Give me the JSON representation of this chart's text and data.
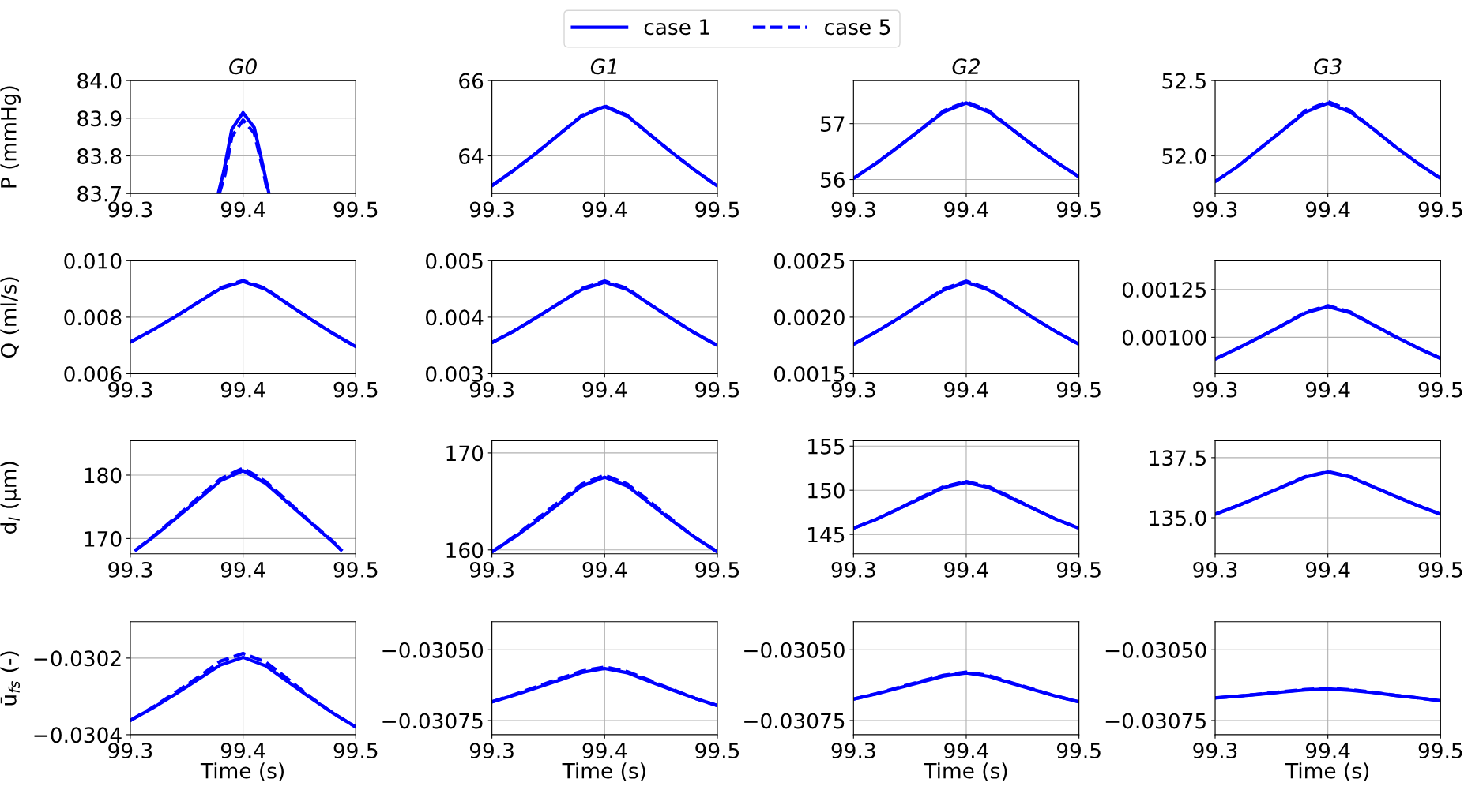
{
  "chart_data": [
    {
      "type": "line",
      "title": "G0",
      "ylabel": "P (mmHg)",
      "legend": "top",
      "grid": true,
      "xlim": [
        99.3,
        99.5
      ],
      "xticks": [
        99.3,
        99.4,
        99.5
      ],
      "ylim": [
        83.7,
        84.0
      ],
      "yticks": [
        83.7,
        83.8,
        83.9,
        {
          "value": 84.0,
          "label": "84.0"
        }
      ],
      "series": [
        {
          "name": "case 1",
          "color": "#0000ff",
          "line_style": "solid",
          "x": [
            99.378,
            99.383,
            99.39,
            99.4,
            99.41,
            99.418,
            99.423
          ],
          "values": [
            83.7,
            83.76,
            83.87,
            83.915,
            83.875,
            83.77,
            83.7
          ]
        },
        {
          "name": "case 5",
          "color": "#0000ff",
          "line_style": "dashed",
          "x": [
            99.379,
            99.384,
            99.39,
            99.4,
            99.41,
            99.418,
            99.422
          ],
          "values": [
            83.7,
            83.75,
            83.85,
            83.895,
            83.86,
            83.76,
            83.7
          ]
        }
      ]
    },
    {
      "type": "line",
      "title": "G1",
      "grid": true,
      "xlim": [
        99.3,
        99.5
      ],
      "xticks": [
        99.3,
        99.4,
        99.5
      ],
      "ylim": [
        63.0,
        66.0
      ],
      "yticks": [
        64,
        66
      ],
      "x": [
        99.3,
        99.32,
        99.34,
        99.36,
        99.38,
        99.4,
        99.42,
        99.44,
        99.46,
        99.48,
        99.5
      ],
      "series": [
        {
          "name": "case 1",
          "color": "#0000ff",
          "line_style": "solid",
          "values": [
            63.21,
            63.63,
            64.09,
            64.58,
            65.06,
            65.31,
            65.06,
            64.57,
            64.08,
            63.62,
            63.2
          ]
        },
        {
          "name": "case 5",
          "color": "#0000ff",
          "line_style": "dashed",
          "values": [
            63.21,
            63.63,
            64.09,
            64.58,
            65.08,
            65.33,
            65.08,
            64.57,
            64.08,
            63.62,
            63.2
          ]
        }
      ]
    },
    {
      "type": "line",
      "title": "G2",
      "grid": true,
      "xlim": [
        99.3,
        99.5
      ],
      "xticks": [
        99.3,
        99.4,
        99.5
      ],
      "ylim": [
        55.75,
        57.77
      ],
      "yticks": [
        56,
        57
      ],
      "x": [
        99.3,
        99.32,
        99.34,
        99.36,
        99.38,
        99.4,
        99.42,
        99.44,
        99.46,
        99.48,
        99.5
      ],
      "series": [
        {
          "name": "case 1",
          "color": "#0000ff",
          "line_style": "solid",
          "values": [
            56.02,
            56.29,
            56.59,
            56.9,
            57.21,
            57.37,
            57.21,
            56.91,
            56.6,
            56.31,
            56.05
          ]
        },
        {
          "name": "case 5",
          "color": "#0000ff",
          "line_style": "dashed",
          "values": [
            56.02,
            56.29,
            56.59,
            56.9,
            57.23,
            57.39,
            57.23,
            56.91,
            56.6,
            56.31,
            56.05
          ]
        }
      ]
    },
    {
      "type": "line",
      "title": "G3",
      "grid": true,
      "xlim": [
        99.3,
        99.5
      ],
      "xticks": [
        99.3,
        99.4,
        99.5
      ],
      "ylim": [
        51.75,
        52.5
      ],
      "yticks": [
        {
          "value": 52.0,
          "label": "52.0"
        },
        52.5
      ],
      "x": [
        99.3,
        99.32,
        99.34,
        99.36,
        99.38,
        99.4,
        99.42,
        99.44,
        99.46,
        99.48,
        99.5
      ],
      "series": [
        {
          "name": "case 1",
          "color": "#0000ff",
          "line_style": "solid",
          "values": [
            51.83,
            51.93,
            52.05,
            52.17,
            52.29,
            52.35,
            52.29,
            52.18,
            52.06,
            51.95,
            51.85
          ]
        },
        {
          "name": "case 5",
          "color": "#0000ff",
          "line_style": "dashed",
          "values": [
            51.83,
            51.93,
            52.05,
            52.17,
            52.3,
            52.36,
            52.3,
            52.18,
            52.06,
            51.95,
            51.85
          ]
        }
      ]
    },
    {
      "type": "line",
      "ylabel": "Q (ml/s)",
      "grid": true,
      "xlim": [
        99.3,
        99.5
      ],
      "xticks": [
        99.3,
        99.4,
        99.5
      ],
      "ylim": [
        0.006,
        0.01
      ],
      "yticks": [
        {
          "value": 0.006,
          "label": "0.006"
        },
        {
          "value": 0.008,
          "label": "0.008"
        },
        {
          "value": 0.01,
          "label": "0.010"
        }
      ],
      "x": [
        99.3,
        99.32,
        99.34,
        99.36,
        99.38,
        99.4,
        99.42,
        99.44,
        99.46,
        99.48,
        99.5
      ],
      "series": [
        {
          "name": "case 1",
          "color": "#0000ff",
          "line_style": "solid",
          "values": [
            0.00712,
            0.00755,
            0.00802,
            0.00852,
            0.00901,
            0.00927,
            0.00899,
            0.00846,
            0.00793,
            0.00742,
            0.00696
          ]
        },
        {
          "name": "case 5",
          "color": "#0000ff",
          "line_style": "dashed",
          "values": [
            0.00712,
            0.00755,
            0.00802,
            0.00852,
            0.00904,
            0.0093,
            0.00902,
            0.00846,
            0.00793,
            0.00742,
            0.00696
          ]
        }
      ]
    },
    {
      "type": "line",
      "grid": true,
      "xlim": [
        99.3,
        99.5
      ],
      "xticks": [
        99.3,
        99.4,
        99.5
      ],
      "ylim": [
        0.003,
        0.005
      ],
      "yticks": [
        {
          "value": 0.003,
          "label": "0.003"
        },
        {
          "value": 0.004,
          "label": "0.004"
        },
        {
          "value": 0.005,
          "label": "0.005"
        }
      ],
      "x": [
        99.3,
        99.32,
        99.34,
        99.36,
        99.38,
        99.4,
        99.42,
        99.44,
        99.46,
        99.48,
        99.5
      ],
      "series": [
        {
          "name": "case 1",
          "color": "#0000ff",
          "line_style": "solid",
          "values": [
            0.00355,
            0.00376,
            0.004,
            0.00425,
            0.00449,
            0.00462,
            0.00449,
            0.00423,
            0.00397,
            0.00372,
            0.0035
          ]
        },
        {
          "name": "case 5",
          "color": "#0000ff",
          "line_style": "dashed",
          "values": [
            0.00355,
            0.00376,
            0.004,
            0.00425,
            0.00451,
            0.00464,
            0.00451,
            0.00423,
            0.00397,
            0.00372,
            0.0035
          ]
        }
      ]
    },
    {
      "type": "line",
      "grid": true,
      "xlim": [
        99.3,
        99.5
      ],
      "xticks": [
        99.3,
        99.4,
        99.5
      ],
      "ylim": [
        0.0015,
        0.0025
      ],
      "yticks": [
        {
          "value": 0.0015,
          "label": "0.0015"
        },
        {
          "value": 0.002,
          "label": "0.0020"
        },
        {
          "value": 0.0025,
          "label": "0.0025"
        }
      ],
      "x": [
        99.3,
        99.32,
        99.34,
        99.36,
        99.38,
        99.4,
        99.42,
        99.44,
        99.46,
        99.48,
        99.5
      ],
      "series": [
        {
          "name": "case 1",
          "color": "#0000ff",
          "line_style": "solid",
          "values": [
            0.00176,
            0.00187,
            0.00199,
            0.00212,
            0.00224,
            0.00231,
            0.00224,
            0.00212,
            0.00199,
            0.00187,
            0.00176
          ]
        },
        {
          "name": "case 5",
          "color": "#0000ff",
          "line_style": "dashed",
          "values": [
            0.00176,
            0.00187,
            0.00199,
            0.00212,
            0.00225,
            0.00232,
            0.00225,
            0.00212,
            0.00199,
            0.00187,
            0.00176
          ]
        }
      ]
    },
    {
      "type": "line",
      "grid": true,
      "xlim": [
        99.3,
        99.5
      ],
      "xticks": [
        99.3,
        99.4,
        99.5
      ],
      "ylim": [
        0.00081,
        0.0014
      ],
      "yticks": [
        {
          "value": 0.001,
          "label": "0.00100"
        },
        {
          "value": 0.00125,
          "label": "0.00125"
        }
      ],
      "x": [
        99.3,
        99.32,
        99.34,
        99.36,
        99.38,
        99.4,
        99.42,
        99.44,
        99.46,
        99.48,
        99.5
      ],
      "series": [
        {
          "name": "case 1",
          "color": "#0000ff",
          "line_style": "solid",
          "values": [
            0.000887,
            0.000942,
            0.001002,
            0.001064,
            0.001127,
            0.00116,
            0.001128,
            0.001066,
            0.001003,
            0.000944,
            0.00089
          ]
        },
        {
          "name": "case 5",
          "color": "#0000ff",
          "line_style": "dashed",
          "values": [
            0.000887,
            0.000942,
            0.001002,
            0.001064,
            0.001131,
            0.001165,
            0.001132,
            0.001066,
            0.001003,
            0.000944,
            0.00089
          ]
        }
      ]
    },
    {
      "type": "line",
      "ylabel": "d$_{l}$ (μm)",
      "grid": true,
      "xlim": [
        99.3,
        99.5
      ],
      "xticks": [
        99.3,
        99.4,
        99.5
      ],
      "ylim": [
        167.6,
        185.4
      ],
      "yticks": [
        170,
        180
      ],
      "series": [
        {
          "name": "case 1",
          "color": "#0000ff",
          "line_style": "solid",
          "x": [
            99.305,
            99.32,
            99.34,
            99.36,
            99.38,
            99.4,
            99.42,
            99.44,
            99.46,
            99.48,
            99.487
          ],
          "values": [
            168.2,
            170.2,
            173.1,
            176.1,
            179.1,
            180.7,
            178.7,
            175.6,
            172.5,
            169.4,
            168.2
          ]
        },
        {
          "name": "case 5",
          "color": "#0000ff",
          "line_style": "dashed",
          "x": [
            99.305,
            99.32,
            99.34,
            99.36,
            99.38,
            99.4,
            99.42,
            99.44,
            99.46,
            99.48,
            99.487
          ],
          "values": [
            168.2,
            170.3,
            173.3,
            176.4,
            179.4,
            181.1,
            179.0,
            175.8,
            172.6,
            169.5,
            168.2
          ]
        }
      ]
    },
    {
      "type": "line",
      "grid": true,
      "xlim": [
        99.3,
        99.5
      ],
      "xticks": [
        99.3,
        99.4,
        99.5
      ],
      "ylim": [
        159.6,
        171.25
      ],
      "yticks": [
        160,
        170
      ],
      "x": [
        99.3,
        99.32,
        99.34,
        99.36,
        99.38,
        99.4,
        99.42,
        99.44,
        99.46,
        99.48,
        99.5
      ],
      "series": [
        {
          "name": "case 1",
          "color": "#0000ff",
          "line_style": "solid",
          "values": [
            159.8,
            161.3,
            163.0,
            164.8,
            166.6,
            167.5,
            166.6,
            164.8,
            163.0,
            161.3,
            159.8
          ]
        },
        {
          "name": "case 5",
          "color": "#0000ff",
          "line_style": "dashed",
          "values": [
            159.8,
            161.4,
            163.2,
            165.0,
            166.8,
            167.7,
            166.8,
            165.0,
            163.1,
            161.3,
            159.8
          ]
        }
      ]
    },
    {
      "type": "line",
      "grid": true,
      "xlim": [
        99.3,
        99.5
      ],
      "xticks": [
        99.3,
        99.4,
        99.5
      ],
      "ylim": [
        142.8,
        155.6
      ],
      "yticks": [
        145,
        150,
        155
      ],
      "x": [
        99.3,
        99.32,
        99.34,
        99.36,
        99.38,
        99.4,
        99.42,
        99.44,
        99.46,
        99.48,
        99.5
      ],
      "series": [
        {
          "name": "case 1",
          "color": "#0000ff",
          "line_style": "solid",
          "values": [
            145.7,
            146.7,
            147.9,
            149.1,
            150.3,
            150.9,
            150.3,
            149.1,
            147.9,
            146.7,
            145.7
          ]
        },
        {
          "name": "case 5",
          "color": "#0000ff",
          "line_style": "dashed",
          "values": [
            145.7,
            146.7,
            147.9,
            149.2,
            150.4,
            151.0,
            150.4,
            149.2,
            147.9,
            146.7,
            145.7
          ]
        }
      ]
    },
    {
      "type": "line",
      "grid": true,
      "xlim": [
        99.3,
        99.5
      ],
      "xticks": [
        99.3,
        99.4,
        99.5
      ],
      "ylim": [
        133.5,
        138.2
      ],
      "yticks": [
        {
          "value": 135.0,
          "label": "135.0"
        },
        137.5
      ],
      "x": [
        99.3,
        99.32,
        99.34,
        99.36,
        99.38,
        99.4,
        99.42,
        99.44,
        99.46,
        99.48,
        99.5
      ],
      "series": [
        {
          "name": "case 1",
          "color": "#0000ff",
          "line_style": "solid",
          "values": [
            135.15,
            135.5,
            135.89,
            136.29,
            136.69,
            136.9,
            136.69,
            136.29,
            135.89,
            135.5,
            135.15
          ]
        },
        {
          "name": "case 5",
          "color": "#0000ff",
          "line_style": "dashed",
          "values": [
            135.15,
            135.5,
            135.89,
            136.3,
            136.71,
            136.92,
            136.71,
            136.3,
            135.89,
            135.5,
            135.15
          ]
        }
      ]
    },
    {
      "type": "line",
      "ylabel": "ū$_{fs}$ (-)",
      "xlabel": "Time (s)",
      "grid": true,
      "xlim": [
        99.3,
        99.5
      ],
      "xticks": [
        99.3,
        99.4,
        99.5
      ],
      "ylim": [
        -0.0304,
        -0.030105
      ],
      "yticks": [
        {
          "value": -0.0304,
          "label": "−0.0304"
        },
        {
          "value": -0.0302,
          "label": "−0.0302"
        }
      ],
      "x": [
        99.3,
        99.32,
        99.34,
        99.36,
        99.38,
        99.4,
        99.42,
        99.44,
        99.46,
        99.48,
        99.5
      ],
      "series": [
        {
          "name": "case 1",
          "color": "#0000ff",
          "line_style": "solid",
          "values": [
            -0.030363,
            -0.03033,
            -0.030294,
            -0.030256,
            -0.030218,
            -0.030198,
            -0.03022,
            -0.030262,
            -0.030304,
            -0.030344,
            -0.03038
          ]
        },
        {
          "name": "case 5",
          "color": "#0000ff",
          "line_style": "dashed",
          "values": [
            -0.030363,
            -0.030328,
            -0.03029,
            -0.03025,
            -0.030208,
            -0.030188,
            -0.03021,
            -0.030255,
            -0.030302,
            -0.030344,
            -0.03038
          ]
        }
      ]
    },
    {
      "type": "line",
      "xlabel": "Time (s)",
      "grid": true,
      "xlim": [
        99.3,
        99.5
      ],
      "xticks": [
        99.3,
        99.4,
        99.5
      ],
      "ylim": [
        -0.0308,
        -0.030401
      ],
      "yticks": [
        {
          "value": -0.03075,
          "label": "−0.03075"
        },
        {
          "value": -0.0305,
          "label": "−0.03050"
        }
      ],
      "x": [
        99.3,
        99.32,
        99.34,
        99.36,
        99.38,
        99.4,
        99.42,
        99.44,
        99.46,
        99.48,
        99.5
      ],
      "series": [
        {
          "name": "case 1",
          "color": "#0000ff",
          "line_style": "solid",
          "values": [
            -0.030684,
            -0.03066,
            -0.030634,
            -0.030607,
            -0.03058,
            -0.030566,
            -0.030581,
            -0.030612,
            -0.030642,
            -0.030671,
            -0.030697
          ]
        },
        {
          "name": "case 5",
          "color": "#0000ff",
          "line_style": "dashed",
          "values": [
            -0.030684,
            -0.030658,
            -0.03063,
            -0.030602,
            -0.030575,
            -0.030561,
            -0.030577,
            -0.030608,
            -0.03064,
            -0.030671,
            -0.030697
          ]
        }
      ]
    },
    {
      "type": "line",
      "xlabel": "Time (s)",
      "grid": true,
      "xlim": [
        99.3,
        99.5
      ],
      "xticks": [
        99.3,
        99.4,
        99.5
      ],
      "ylim": [
        -0.0308,
        -0.030401
      ],
      "yticks": [
        {
          "value": -0.03075,
          "label": "−0.03075"
        },
        {
          "value": -0.0305,
          "label": "−0.03050"
        }
      ],
      "x": [
        99.3,
        99.32,
        99.34,
        99.36,
        99.38,
        99.4,
        99.42,
        99.44,
        99.46,
        99.48,
        99.5
      ],
      "series": [
        {
          "name": "case 1",
          "color": "#0000ff",
          "line_style": "solid",
          "values": [
            -0.030674,
            -0.030656,
            -0.030635,
            -0.030614,
            -0.030593,
            -0.030582,
            -0.030594,
            -0.030618,
            -0.030641,
            -0.030664,
            -0.030684
          ]
        },
        {
          "name": "case 5",
          "color": "#0000ff",
          "line_style": "dashed",
          "values": [
            -0.030674,
            -0.030655,
            -0.030633,
            -0.030611,
            -0.03059,
            -0.030579,
            -0.030591,
            -0.030616,
            -0.03064,
            -0.030664,
            -0.030684
          ]
        }
      ]
    },
    {
      "type": "line",
      "xlabel": "Time (s)",
      "grid": true,
      "xlim": [
        99.3,
        99.5
      ],
      "xticks": [
        99.3,
        99.4,
        99.5
      ],
      "ylim": [
        -0.0308,
        -0.030401
      ],
      "yticks": [
        {
          "value": -0.03075,
          "label": "−0.03075"
        },
        {
          "value": -0.0305,
          "label": "−0.03050"
        }
      ],
      "x": [
        99.3,
        99.32,
        99.34,
        99.36,
        99.38,
        99.4,
        99.42,
        99.44,
        99.46,
        99.48,
        99.5
      ],
      "series": [
        {
          "name": "case 1",
          "color": "#0000ff",
          "line_style": "solid",
          "values": [
            -0.03067,
            -0.030664,
            -0.030657,
            -0.030649,
            -0.030642,
            -0.030638,
            -0.030643,
            -0.030651,
            -0.030661,
            -0.03067,
            -0.03068
          ]
        },
        {
          "name": "case 5",
          "color": "#0000ff",
          "line_style": "dashed",
          "values": [
            -0.03067,
            -0.030664,
            -0.030656,
            -0.030648,
            -0.03064,
            -0.030636,
            -0.030641,
            -0.03065,
            -0.030661,
            -0.03067,
            -0.03068
          ]
        }
      ]
    }
  ]
}
